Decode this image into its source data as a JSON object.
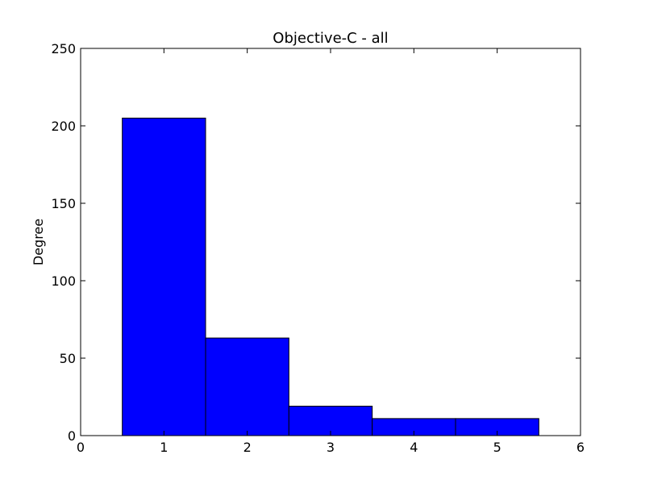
{
  "chart_data": {
    "type": "histogram",
    "title": "Objective-C - all",
    "ylabel": "Degree",
    "bins": [
      0.5,
      1.5,
      2.5,
      3.5,
      4.5,
      5.5
    ],
    "counts": [
      205,
      63,
      19,
      11,
      11
    ],
    "color": "#0000ff",
    "xlim": [
      0,
      6
    ],
    "xticks": [
      0,
      1,
      2,
      3,
      4,
      5,
      6
    ],
    "ylim": [
      0,
      250
    ],
    "yticks": [
      0,
      50,
      100,
      150,
      200,
      250
    ]
  }
}
